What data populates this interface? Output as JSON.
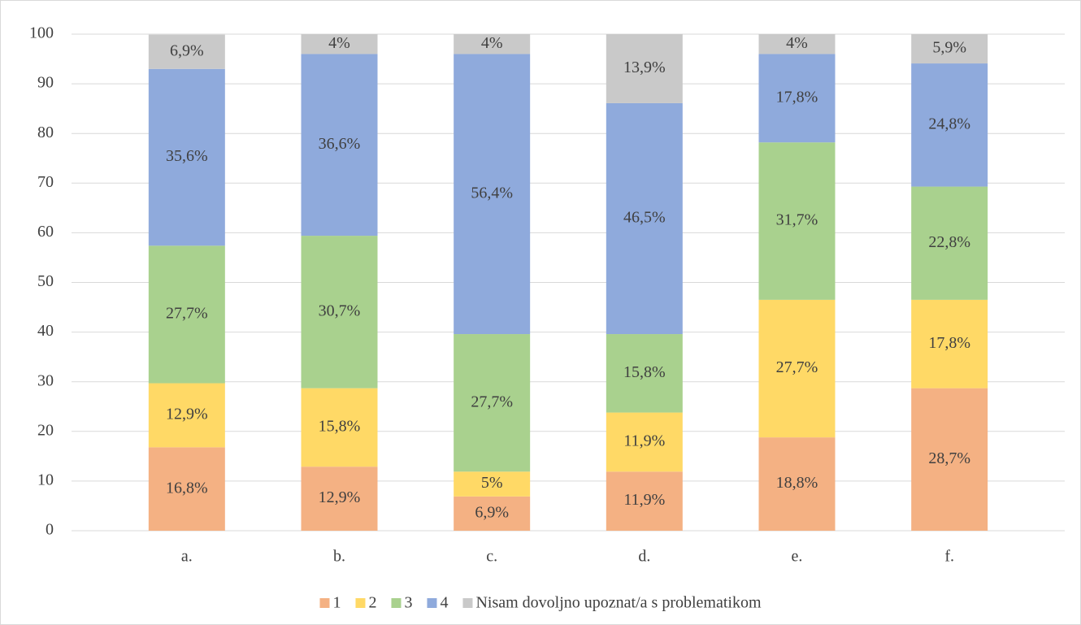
{
  "chart_data": {
    "type": "stacked_bar",
    "categories": [
      "a.",
      "b.",
      "c.",
      "d.",
      "e.",
      "f."
    ],
    "series": [
      {
        "name": "1",
        "color": "#f4b183",
        "values": [
          16.8,
          12.9,
          6.9,
          11.9,
          18.8,
          28.7
        ],
        "value_labels": [
          "16,8%",
          "12,9%",
          "6,9%",
          "11,9%",
          "18,8%",
          "28,7%"
        ]
      },
      {
        "name": "2",
        "color": "#ffd966",
        "values": [
          12.9,
          15.8,
          5,
          11.9,
          27.7,
          17.8
        ],
        "value_labels": [
          "12,9%",
          "15,8%",
          "5%",
          "11,9%",
          "27,7%",
          "17,8%"
        ]
      },
      {
        "name": "3",
        "color": "#a9d18e",
        "values": [
          27.7,
          30.7,
          27.7,
          15.8,
          31.7,
          22.8
        ],
        "value_labels": [
          "27,7%",
          "30,7%",
          "27,7%",
          "15,8%",
          "31,7%",
          "22,8%"
        ]
      },
      {
        "name": "4",
        "color": "#8faadc",
        "values": [
          35.6,
          36.6,
          56.4,
          46.5,
          17.8,
          24.8
        ],
        "value_labels": [
          "35,6%",
          "36,6%",
          "56,4%",
          "46,5%",
          "17,8%",
          "24,8%"
        ]
      },
      {
        "name": "Nisam dovoljno upoznat/a s problematikom",
        "color": "#c9c9c9",
        "values": [
          6.9,
          4,
          4,
          13.9,
          4,
          5.9
        ],
        "value_labels": [
          "6,9%",
          "4%",
          "4%",
          "13,9%",
          "4%",
          "5,9%"
        ]
      }
    ],
    "ylim": [
      0,
      100
    ],
    "yticks": [
      0,
      10,
      20,
      30,
      40,
      50,
      60,
      70,
      80,
      90,
      100
    ],
    "grid": true,
    "legend": "bottom"
  }
}
